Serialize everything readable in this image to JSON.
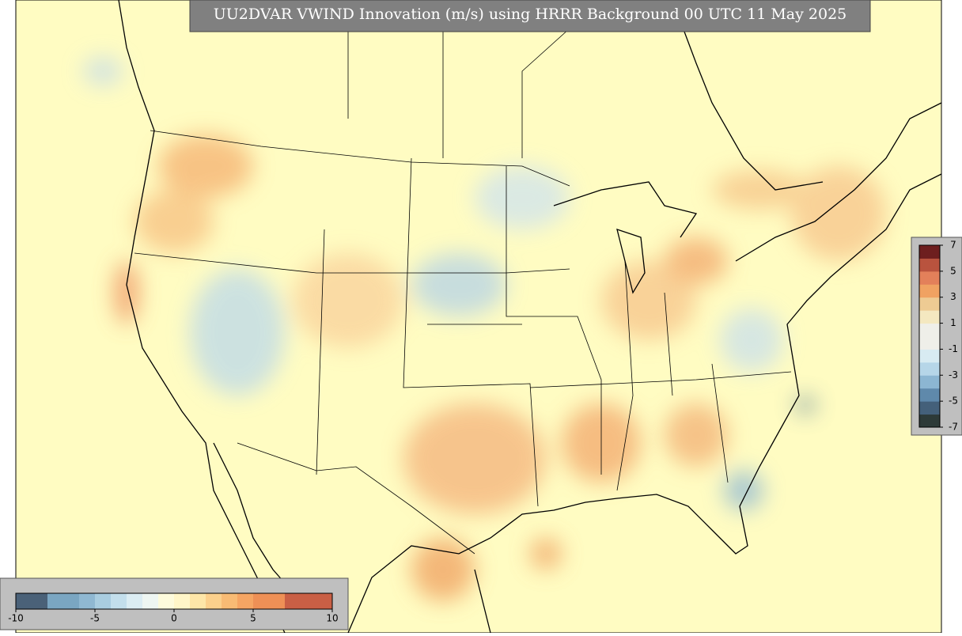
{
  "title": "UU2DVAR VWIND Innovation (m/s) using HRRR Background 00 UTC 11 May 2025",
  "colorbars": [
    {
      "orientation": "horizontal",
      "lim": [
        -10,
        10
      ],
      "ticks": [
        -10,
        -5,
        0,
        5,
        10
      ],
      "colors": [
        "#4a6178",
        "#4a6178",
        "#7aa6c2",
        "#7aa6c2",
        "#8fb8d2",
        "#a9cde0",
        "#c3dfec",
        "#dbedf3",
        "#eef6f2",
        "#fdfbdc",
        "#fff6c8",
        "#fde6a8",
        "#fbd08c",
        "#f8bb74",
        "#f5a563",
        "#ee9056",
        "#ee9056",
        "#c95f45",
        "#c95f45",
        "#c95f45"
      ]
    },
    {
      "orientation": "vertical",
      "lim": [
        -7,
        7
      ],
      "ticks": [
        7,
        5,
        3,
        1,
        -1,
        -3,
        -5,
        -7
      ],
      "colors": [
        "#2d3a38",
        "#44607a",
        "#5f89ab",
        "#8cb6d2",
        "#b6d6e8",
        "#d8ebf2",
        "#efefe9",
        "#efefe9",
        "#f4e8c0",
        "#eecb93",
        "#f0a262",
        "#e3805a",
        "#b9533e",
        "#6e1f1f"
      ]
    }
  ]
}
